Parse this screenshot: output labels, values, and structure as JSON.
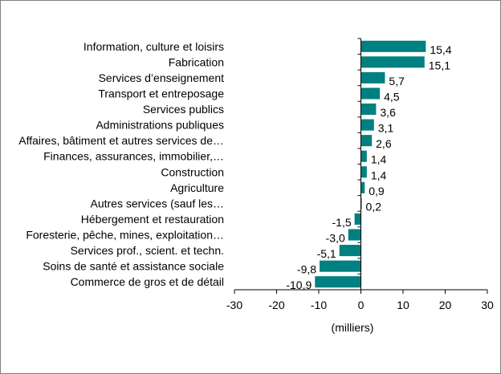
{
  "chart_data": {
    "type": "bar",
    "orientation": "horizontal",
    "categories": [
      "Information, culture et loisirs",
      "Fabrication",
      "Services d’enseignement",
      "Transport et entreposage",
      "Services publics",
      "Administrations publiques",
      "Affaires, bâtiment et autres services de…",
      "Finances, assurances, immobilier,…",
      "Construction",
      "Agriculture",
      "Autres services (sauf les…",
      "Hébergement et restauration",
      "Foresterie, pêche, mines, exploitation…",
      "Services prof., scient. et techn.",
      "Soins de santé et assistance sociale",
      "Commerce de gros et de détail"
    ],
    "values": [
      15.4,
      15.1,
      5.7,
      4.5,
      3.6,
      3.1,
      2.6,
      1.4,
      1.4,
      0.9,
      0.2,
      -1.5,
      -3.0,
      -5.1,
      -9.8,
      -10.9
    ],
    "value_labels": [
      "15,4",
      "15,1",
      "5,7",
      "4,5",
      "3,6",
      "3,1",
      "2,6",
      "1,4",
      "1,4",
      "0,9",
      "0,2",
      "-1,5",
      "-3,0",
      "-5,1",
      "-9,8",
      "-10,9"
    ],
    "xlim": [
      -30,
      30
    ],
    "x_ticks": [
      -30,
      -20,
      -10,
      0,
      10,
      20,
      30
    ],
    "x_tick_labels": [
      "-30",
      "-20",
      "-10",
      "0",
      "10",
      "20",
      "30"
    ],
    "xlabel": "(milliers)",
    "title": "",
    "bar_color": "#008080",
    "grid": false,
    "legend": "none"
  }
}
